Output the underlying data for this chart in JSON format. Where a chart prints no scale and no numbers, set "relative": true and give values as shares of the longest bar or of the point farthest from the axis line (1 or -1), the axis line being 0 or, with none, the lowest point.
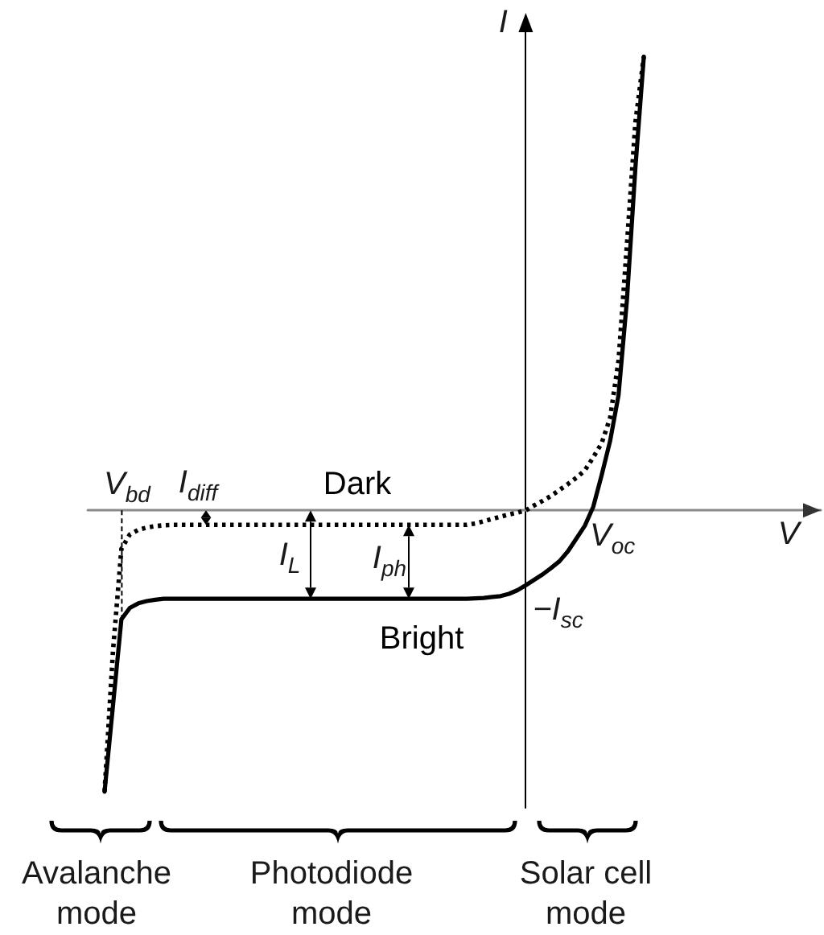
{
  "chart_data": {
    "type": "line",
    "relative": true,
    "xlabel": "V",
    "ylabel": "I",
    "marker": "none",
    "categories": [
      null,
      null,
      null,
      null,
      null,
      null,
      null,
      null,
      null,
      null,
      null,
      null,
      null,
      null,
      null,
      null,
      null,
      null,
      null,
      null,
      null,
      null,
      null,
      null,
      null,
      null,
      null,
      null,
      null,
      null,
      null,
      null,
      null,
      null,
      null,
      null,
      null,
      null,
      null,
      null,
      null,
      null,
      null,
      null,
      null,
      null,
      null,
      null,
      null,
      null,
      null,
      null,
      null,
      null,
      null,
      null,
      null,
      null,
      null,
      null,
      null,
      null,
      null,
      null,
      null,
      null,
      null,
      null,
      null,
      null,
      null,
      null,
      null,
      null,
      null,
      null,
      null,
      null,
      null,
      null,
      null,
      null,
      null,
      null,
      null,
      null,
      null,
      null
    ],
    "series": [
      {
        "name": "Dark",
        "color": "#000000",
        "line_style": "dotted",
        "values": [
          null,
          null,
          -0.62,
          -0.31,
          -0.085,
          -0.053,
          -0.043,
          -0.038,
          -0.035,
          -0.033,
          -0.032,
          -0.032,
          -0.032,
          -0.032,
          -0.032,
          -0.032,
          -0.032,
          -0.032,
          -0.032,
          -0.032,
          -0.032,
          -0.032,
          -0.032,
          -0.032,
          -0.032,
          -0.032,
          -0.032,
          -0.032,
          -0.032,
          -0.032,
          -0.032,
          -0.032,
          -0.032,
          -0.032,
          -0.032,
          -0.032,
          -0.032,
          -0.032,
          -0.032,
          -0.032,
          -0.032,
          -0.032,
          -0.032,
          -0.032,
          -0.032,
          -0.032,
          -0.029,
          -0.024,
          -0.019,
          -0.014,
          -0.009,
          -0.005,
          0,
          0.011,
          0.021,
          0.032,
          0.045,
          0.058,
          0.072,
          0.088,
          0.117,
          0.148,
          0.204,
          0.33,
          0.587,
          0.855,
          1.0,
          null,
          null,
          null,
          null,
          null,
          null,
          null,
          null,
          null,
          null,
          null,
          null,
          null,
          null,
          null,
          null,
          null,
          null,
          null,
          null,
          null
        ]
      },
      {
        "name": "Bright",
        "color": "#000000",
        "line_style": "solid",
        "values": [
          null,
          null,
          -0.62,
          -0.43,
          -0.24,
          -0.215,
          -0.205,
          -0.2,
          -0.197,
          -0.195,
          -0.195,
          -0.195,
          -0.195,
          -0.195,
          -0.195,
          -0.195,
          -0.195,
          -0.195,
          -0.195,
          -0.195,
          -0.195,
          -0.195,
          -0.195,
          -0.195,
          -0.195,
          -0.195,
          -0.195,
          -0.195,
          -0.195,
          -0.195,
          -0.195,
          -0.195,
          -0.195,
          -0.195,
          -0.195,
          -0.195,
          -0.195,
          -0.195,
          -0.195,
          -0.195,
          -0.195,
          -0.195,
          -0.195,
          -0.195,
          -0.195,
          -0.195,
          -0.194,
          -0.193,
          -0.191,
          -0.189,
          -0.184,
          -0.176,
          -0.165,
          -0.153,
          -0.141,
          -0.127,
          -0.112,
          -0.09,
          -0.062,
          -0.034,
          0.008,
          0.078,
          0.153,
          0.254,
          0.465,
          0.755,
          1.0,
          null,
          null,
          null,
          null,
          null,
          null,
          null,
          null,
          null,
          null,
          null,
          null,
          null,
          null,
          null,
          null,
          null,
          null,
          null,
          null,
          null
        ]
      }
    ],
    "annotations": [
      "V$_{bd}$",
      {
        "text": "I$_{diff}$",
        "y": -0.032
      },
      {
        "text": "I$_{L}$",
        "y": -0.195
      },
      {
        "text": "I$_{ph}$",
        "y": -0.195
      },
      "V$_{oc}$",
      "−I$_{sc}$",
      "Avalanche\nmode",
      "Photodiode\nmode",
      "Solar cell\nmode"
    ]
  }
}
